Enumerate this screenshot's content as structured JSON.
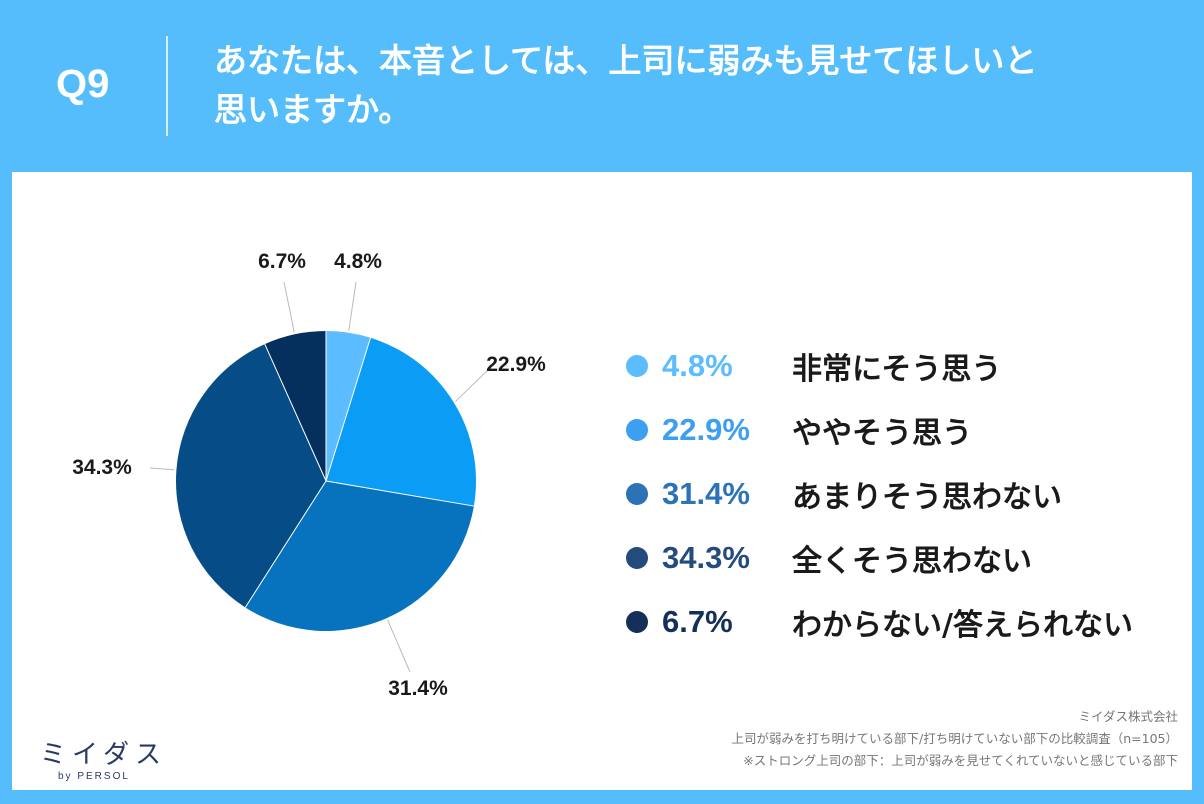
{
  "header": {
    "qnum": "Q9",
    "title_line1": "あなたは、本音としては、上司に弱みも見せてほしいと",
    "title_line2": "思いますか。"
  },
  "chart_data": {
    "type": "pie",
    "start_angle_deg": 0,
    "direction": "clockwise",
    "slices": [
      {
        "label": "非常にそう思う",
        "value": 4.8,
        "display": "4.8%",
        "color": "#5bbcff",
        "legend_color": "#5bbcff"
      },
      {
        "label": "ややそう思う",
        "value": 22.9,
        "display": "22.9%",
        "color": "#0b9cf6",
        "legend_color": "#3d9ff2"
      },
      {
        "label": "あまりそう思わない",
        "value": 31.4,
        "display": "31.4%",
        "color": "#0772bd",
        "legend_color": "#2c72b6"
      },
      {
        "label": "全くそう思わない",
        "value": 34.3,
        "display": "34.3%",
        "color": "#064d87",
        "legend_color": "#234c7d"
      },
      {
        "label": "わからない/答えられない",
        "value": 6.7,
        "display": "6.7%",
        "color": "#05305e",
        "legend_color": "#14305a"
      }
    ]
  },
  "legend": [
    {
      "value": "4.8%",
      "label": "非常にそう思う",
      "color": "#5bbcff"
    },
    {
      "value": "22.9%",
      "label": "ややそう思う",
      "color": "#3d9ff2"
    },
    {
      "value": "31.4%",
      "label": "あまりそう思わない",
      "color": "#2c72b6"
    },
    {
      "value": "34.3%",
      "label": "全くそう思わない",
      "color": "#234c7d"
    },
    {
      "value": "6.7%",
      "label": "わからない/答えられない",
      "color": "#14305a"
    }
  ],
  "brand": {
    "name": "ミイダス",
    "sub": "by PERSOL"
  },
  "footer": {
    "line1": "ミイダス株式会社",
    "line2": "上司が弱みを打ち明けている部下/打ち明けていない部下の比較調査（n=105）",
    "line3": "※ストロング上司の部下：上司が弱みを見せてくれていないと感じている部下"
  }
}
